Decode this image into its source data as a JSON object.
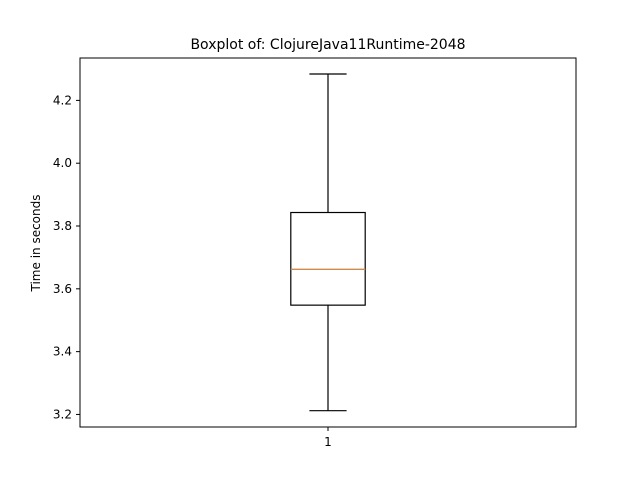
{
  "chart_data": {
    "type": "boxplot",
    "title": "Boxplot of: ClojureJava11Runtime-2048",
    "xlabel": "",
    "ylabel": "Time in seconds",
    "categories": [
      "1"
    ],
    "boxes": [
      {
        "category": "1",
        "whisker_low": 3.212,
        "q1": 3.548,
        "median": 3.662,
        "q3": 3.843,
        "whisker_high": 4.284
      }
    ],
    "ylim": [
      3.16,
      4.335
    ],
    "yticks": [
      3.2,
      3.4,
      3.6,
      3.8,
      4.0,
      4.2
    ],
    "ytick_labels": [
      "3.2",
      "3.4",
      "3.6",
      "3.8",
      "4.0",
      "4.2"
    ],
    "grid": false,
    "colors": {
      "box": "#000000",
      "median": "#ff7f0e",
      "whisker": "#000000",
      "axes": "#000000"
    }
  }
}
